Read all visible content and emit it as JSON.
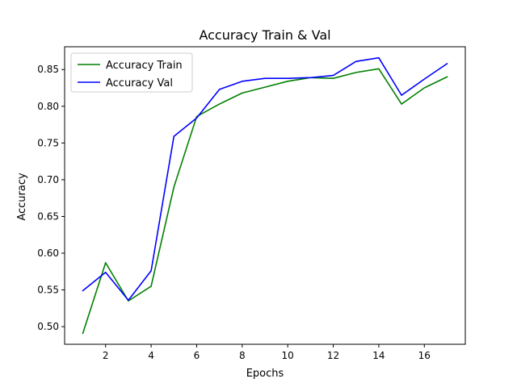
{
  "chart_data": {
    "type": "line",
    "title": "Accuracy Train & Val",
    "xlabel": "Epochs",
    "ylabel": "Accuracy",
    "xlim": [
      0.2,
      17.8
    ],
    "ylim": [
      0.476,
      0.881
    ],
    "xticks": [
      2,
      4,
      6,
      8,
      10,
      12,
      14,
      16
    ],
    "xtick_labels": [
      "2",
      "4",
      "6",
      "8",
      "10",
      "12",
      "14",
      "16"
    ],
    "yticks": [
      0.5,
      0.55,
      0.6,
      0.65,
      0.7,
      0.75,
      0.8,
      0.85
    ],
    "ytick_labels": [
      "0.50",
      "0.55",
      "0.60",
      "0.65",
      "0.70",
      "0.75",
      "0.80",
      "0.85"
    ],
    "grid": false,
    "legend_position": "upper-left",
    "x": [
      1,
      2,
      3,
      4,
      5,
      6,
      7,
      8,
      9,
      10,
      11,
      12,
      13,
      14,
      15,
      16,
      17
    ],
    "series": [
      {
        "name": "Accuracy Train",
        "color": "#008000",
        "values": [
          0.491,
          0.587,
          0.535,
          0.555,
          0.69,
          0.786,
          0.803,
          0.818,
          0.826,
          0.834,
          0.839,
          0.838,
          0.846,
          0.851,
          0.803,
          0.825,
          0.84
        ]
      },
      {
        "name": "Accuracy Val",
        "color": "#0000ff",
        "values": [
          0.549,
          0.574,
          0.536,
          0.576,
          0.759,
          0.784,
          0.823,
          0.834,
          0.838,
          0.838,
          0.839,
          0.842,
          0.861,
          0.866,
          0.815,
          0.837,
          0.858
        ]
      }
    ]
  }
}
